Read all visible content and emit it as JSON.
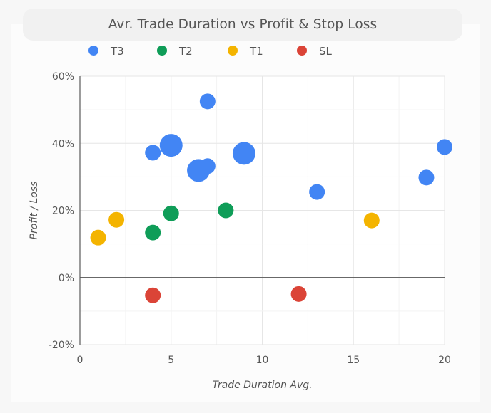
{
  "chart_data": {
    "type": "scatter",
    "title": "Avr. Trade Duration vs Profit & Stop Loss",
    "xlabel": "Trade Duration Avg.",
    "ylabel": "Profit / Loss",
    "xlim": [
      0,
      20
    ],
    "ylim": [
      -20,
      60
    ],
    "xticks": [
      0,
      5,
      10,
      15,
      20
    ],
    "yticks": [
      -20,
      0,
      20,
      40,
      60
    ],
    "ytick_labels": [
      "-20%",
      "0%",
      "20%",
      "40%",
      "60%"
    ],
    "xtick_labels": [
      "0",
      "5",
      "10",
      "15",
      "20"
    ],
    "grid": true,
    "legend_position": "top",
    "series": [
      {
        "name": "T3",
        "color": "#4285f4",
        "points": [
          {
            "x": 7,
            "y": 52.5,
            "size": 1
          },
          {
            "x": 4,
            "y": 37.2,
            "size": 1
          },
          {
            "x": 5,
            "y": 39.4,
            "size": 2
          },
          {
            "x": 6.5,
            "y": 31.9,
            "size": 2
          },
          {
            "x": 7,
            "y": 33.2,
            "size": 1
          },
          {
            "x": 9,
            "y": 37.0,
            "size": 2
          },
          {
            "x": 13,
            "y": 25.5,
            "size": 1
          },
          {
            "x": 19,
            "y": 29.8,
            "size": 1
          },
          {
            "x": 20,
            "y": 38.9,
            "size": 1
          }
        ]
      },
      {
        "name": "T2",
        "color": "#0f9d58",
        "points": [
          {
            "x": 4,
            "y": 13.4,
            "size": 1
          },
          {
            "x": 5,
            "y": 19.1,
            "size": 1
          },
          {
            "x": 8,
            "y": 20.0,
            "size": 1
          }
        ]
      },
      {
        "name": "T1",
        "color": "#f4b400",
        "points": [
          {
            "x": 1,
            "y": 11.9,
            "size": 1
          },
          {
            "x": 2,
            "y": 17.2,
            "size": 1
          },
          {
            "x": 16,
            "y": 17.0,
            "size": 1
          }
        ]
      },
      {
        "name": "SL",
        "color": "#db4437",
        "points": [
          {
            "x": 4,
            "y": -5.3,
            "size": 1
          },
          {
            "x": 12,
            "y": -4.9,
            "size": 1
          }
        ]
      }
    ]
  }
}
